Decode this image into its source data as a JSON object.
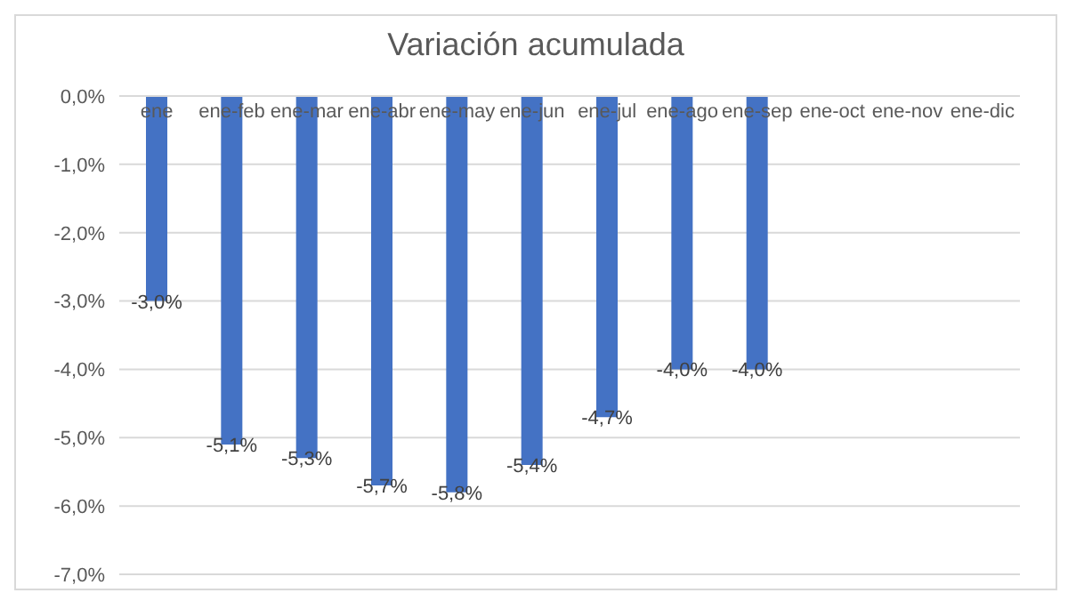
{
  "chart_data": {
    "type": "bar",
    "title": "Variación acumulada",
    "categories": [
      "ene",
      "ene-feb",
      "ene-mar",
      "ene-abr",
      "ene-may",
      "ene-jun",
      "ene-jul",
      "ene-ago",
      "ene-sep",
      "ene-oct",
      "ene-nov",
      "ene-dic"
    ],
    "values": [
      -3.0,
      -5.1,
      -5.3,
      -5.7,
      -5.8,
      -5.4,
      -4.7,
      -4.0,
      -4.0,
      null,
      null,
      null
    ],
    "value_labels": [
      "-3,0%",
      "-5,1%",
      "-5,3%",
      "-5,7%",
      "-5,8%",
      "-5,4%",
      "-4,7%",
      "-4,0%",
      "-4,0%",
      null,
      null,
      null
    ],
    "color": "#4472c4",
    "ylim": [
      -7,
      0
    ],
    "yticks": [
      {
        "value": 0,
        "label": "0,0%"
      },
      {
        "value": -1,
        "label": "-1,0%"
      },
      {
        "value": -2,
        "label": "-2,0%"
      },
      {
        "value": -3,
        "label": "-3,0%"
      },
      {
        "value": -4,
        "label": "-4,0%"
      },
      {
        "value": -5,
        "label": "-5,0%"
      },
      {
        "value": -6,
        "label": "-6,0%"
      },
      {
        "value": -7,
        "label": "-7,0%"
      }
    ],
    "grid": "y"
  }
}
